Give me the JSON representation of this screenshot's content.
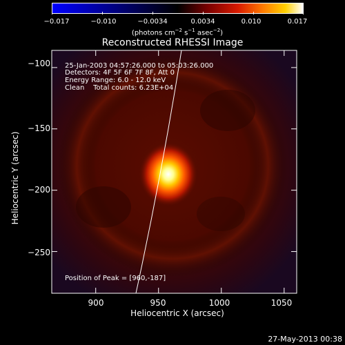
{
  "colorbar": {
    "ticks": [
      "−0.017",
      "−0.010",
      "−0.0034",
      "0.0034",
      "0.010",
      "0.017"
    ],
    "units": "(photons cm",
    "units_exp1": "−2",
    "units_mid1": " s",
    "units_exp2": "−1",
    "units_mid2": " asec",
    "units_exp3": "−2",
    "units_end": ")"
  },
  "chart_data": {
    "type": "heatmap",
    "title": "Reconstructed RHESSI Image",
    "xlabel": "Heliocentric X (arcsec)",
    "ylabel": "Heliocentric Y (arcsec)",
    "xlim": [
      865,
      1060
    ],
    "ylim": [
      -284,
      -86
    ],
    "xticks": [
      900,
      950,
      1000,
      1050
    ],
    "yticks": [
      -100,
      -150,
      -200,
      -250
    ],
    "xtick_labels": [
      "900",
      "950",
      "1000",
      "1050"
    ],
    "ytick_labels": [
      "−100",
      "−150",
      "−200",
      "−250"
    ],
    "peak": [
      960,
      -187
    ],
    "colorbar_range": [
      -0.017,
      0.017
    ]
  },
  "info": {
    "time_range": "25-Jan-2003 04:57:26.000 to 05:03:26.000",
    "detectors": "Detectors: 4F 5F 6F 7F 8F, Att 0",
    "energy": "Energy Range: 6.0 - 12.0 keV",
    "clean": "Clean    Total counts: 6.23E+04",
    "peak_label": "Position of Peak = [960,-187]"
  },
  "timestamp": "27-May-2013 00:38"
}
